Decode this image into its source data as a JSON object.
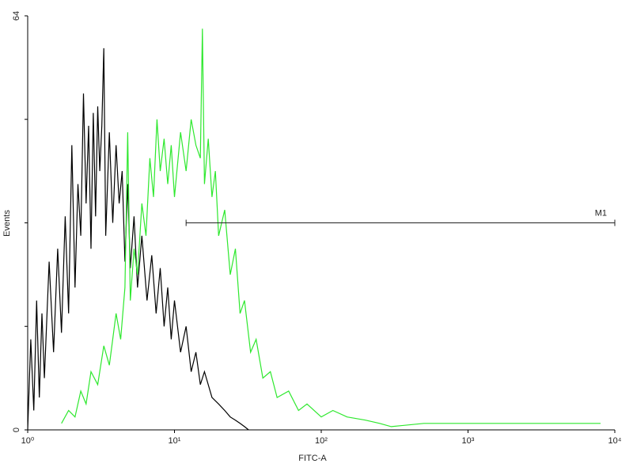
{
  "chart_data": {
    "type": "histogram-line",
    "xlabel": "FITC-A",
    "ylabel": "Events",
    "xscale": "log",
    "xlim": [
      1,
      10000
    ],
    "ylim": [
      0,
      64
    ],
    "xticks": [
      {
        "value": 1,
        "label": "10⁰"
      },
      {
        "value": 10,
        "label": "10¹"
      },
      {
        "value": 100,
        "label": "10²"
      },
      {
        "value": 1000,
        "label": "10³"
      },
      {
        "value": 10000,
        "label": "10⁴"
      }
    ],
    "yticks": [
      0,
      64
    ],
    "yminorticks": [
      16,
      32,
      48
    ],
    "series": [
      {
        "color": "#000000",
        "x": [
          1,
          1.05,
          1.1,
          1.15,
          1.2,
          1.25,
          1.3,
          1.4,
          1.5,
          1.6,
          1.7,
          1.8,
          1.9,
          2,
          2.1,
          2.2,
          2.3,
          2.4,
          2.5,
          2.6,
          2.7,
          2.8,
          2.9,
          3,
          3.1,
          3.2,
          3.3,
          3.4,
          3.6,
          3.8,
          4,
          4.2,
          4.4,
          4.6,
          4.8,
          5,
          5.3,
          5.6,
          6,
          6.5,
          7,
          7.5,
          8,
          8.5,
          9,
          9.5,
          10,
          11,
          12,
          13,
          14,
          15,
          16,
          18,
          20,
          22,
          24,
          26,
          28,
          30,
          32
        ],
        "values": [
          0,
          14,
          3,
          20,
          5,
          18,
          8,
          26,
          12,
          28,
          15,
          33,
          18,
          44,
          22,
          38,
          30,
          52,
          35,
          47,
          28,
          49,
          33,
          50,
          40,
          47,
          59,
          30,
          46,
          32,
          44,
          35,
          40,
          26,
          38,
          25,
          33,
          22,
          30,
          20,
          27,
          18,
          25,
          16,
          22,
          14,
          20,
          12,
          16,
          9,
          12,
          7,
          9,
          5,
          4,
          3,
          2,
          1.5,
          1,
          0.5,
          0
        ]
      },
      {
        "color": "#2ee82e",
        "x": [
          1.7,
          1.9,
          2.1,
          2.3,
          2.5,
          2.7,
          3,
          3.3,
          3.6,
          4,
          4.3,
          4.6,
          4.8,
          5,
          5.3,
          5.6,
          6,
          6.4,
          6.8,
          7.2,
          7.6,
          8,
          8.5,
          9,
          9.5,
          10,
          11,
          12,
          13,
          14,
          15,
          15.5,
          16,
          17,
          18,
          19,
          20,
          22,
          24,
          26,
          28,
          30,
          33,
          36,
          40,
          45,
          50,
          60,
          70,
          80,
          100,
          120,
          150,
          200,
          250,
          300,
          500,
          2300,
          4500,
          8000
        ],
        "values": [
          1,
          3,
          2,
          6,
          4,
          9,
          7,
          13,
          10,
          18,
          14,
          22,
          46,
          20,
          28,
          24,
          35,
          30,
          42,
          36,
          48,
          40,
          45,
          38,
          44,
          36,
          46,
          40,
          48,
          44,
          42,
          62,
          38,
          45,
          36,
          40,
          30,
          34,
          24,
          28,
          18,
          20,
          12,
          14,
          8,
          9,
          5,
          6,
          3,
          4,
          2,
          3,
          2,
          1.5,
          1,
          0.5,
          1,
          1,
          1,
          1
        ]
      }
    ],
    "marker": {
      "label": "M1",
      "x": [
        12,
        10000
      ],
      "y": 32
    }
  }
}
